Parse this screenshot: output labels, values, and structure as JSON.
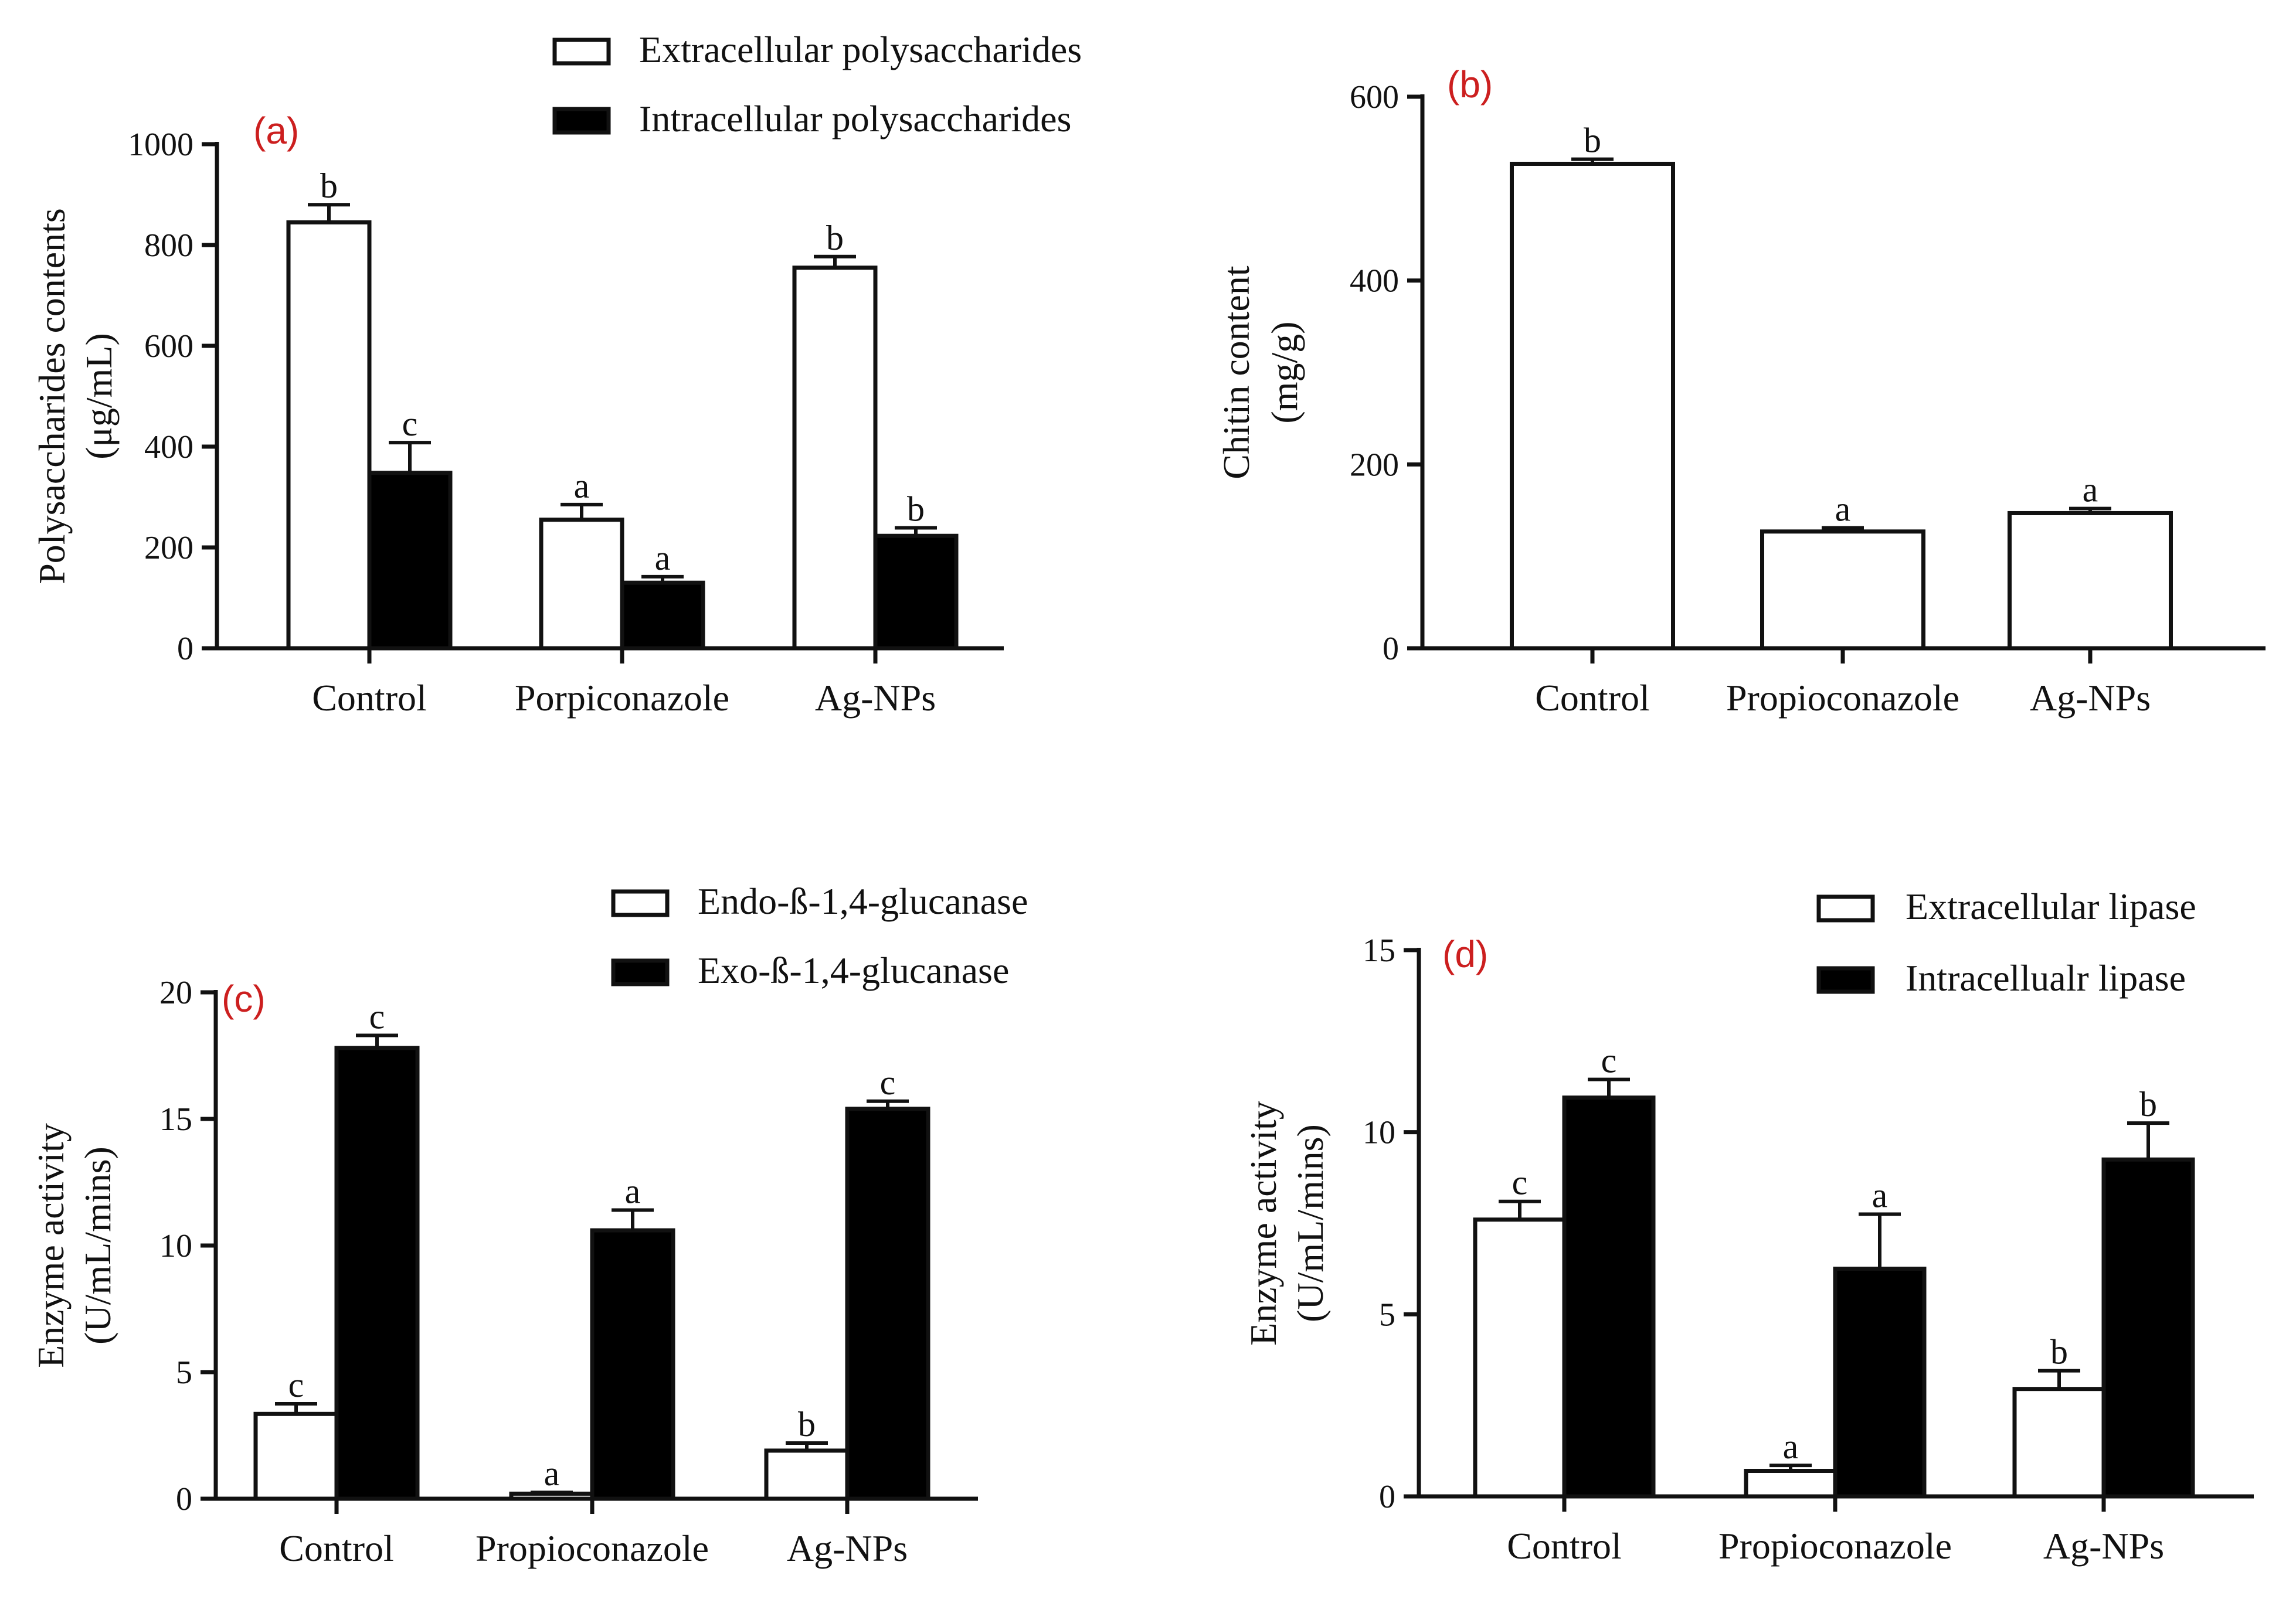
{
  "colors": {
    "open_fill": "#ffffff",
    "filled_fill": "#000000",
    "stroke": "#111111",
    "panel_tag": "#cc1f1f"
  },
  "chart_data": [
    {
      "id": "a",
      "panel_label": "(a)",
      "type": "bar",
      "categories": [
        "Control",
        "Porpiconazole",
        "Ag-NPs"
      ],
      "ylabel_lines": [
        "Polysaccharides contents",
        "(μg/mL)"
      ],
      "ylim": [
        0,
        1000
      ],
      "yticks": [
        0,
        200,
        400,
        600,
        800,
        1000
      ],
      "series": [
        {
          "name": "Extracellular polysaccharides",
          "fill": "open",
          "values": [
            845,
            255,
            755
          ],
          "errors": [
            35,
            30,
            22
          ],
          "letters": [
            "b",
            "a",
            "b"
          ]
        },
        {
          "name": "Intracellular polysaccharides",
          "fill": "filled",
          "values": [
            348,
            130,
            223
          ],
          "errors": [
            60,
            12,
            16
          ],
          "letters": [
            "c",
            "a",
            "b"
          ]
        }
      ]
    },
    {
      "id": "b",
      "panel_label": "(b)",
      "type": "bar",
      "categories": [
        "Control",
        "Propioconazole",
        "Ag-NPs"
      ],
      "ylabel_lines": [
        "Chitin content",
        "(mg/g)"
      ],
      "ylim": [
        0,
        600
      ],
      "yticks": [
        0,
        200,
        400,
        600
      ],
      "series": [
        {
          "name": "Chitin content",
          "fill": "open",
          "values": [
            527,
            127,
            147
          ],
          "errors": [
            5,
            4,
            5
          ],
          "letters": [
            "b",
            "a",
            "a"
          ]
        }
      ]
    },
    {
      "id": "c",
      "panel_label": "(c)",
      "type": "bar",
      "categories": [
        "Control",
        "Propioconazole",
        "Ag-NPs"
      ],
      "ylabel_lines": [
        "Enzyme  activity",
        "(U/mL/mins)"
      ],
      "ylim": [
        0,
        20
      ],
      "yticks": [
        0,
        5,
        10,
        15,
        20
      ],
      "series": [
        {
          "name": "Endo-ß-1,4-glucanase",
          "fill": "open",
          "values": [
            3.35,
            0.2,
            1.9
          ],
          "errors": [
            0.4,
            0.05,
            0.3
          ],
          "letters": [
            "c",
            "a",
            "b"
          ]
        },
        {
          "name": "Exo-ß-1,4-glucanase",
          "fill": "filled",
          "values": [
            17.8,
            10.6,
            15.4
          ],
          "errors": [
            0.5,
            0.8,
            0.3
          ],
          "letters": [
            "c",
            "a",
            "c"
          ]
        }
      ]
    },
    {
      "id": "d",
      "panel_label": "(d)",
      "type": "bar",
      "categories": [
        "Control",
        "Propioconazole",
        "Ag-NPs"
      ],
      "ylabel_lines": [
        "Enzyme  activity",
        "(U/mL/mins)"
      ],
      "ylim": [
        0,
        15
      ],
      "yticks": [
        0,
        5,
        10,
        15
      ],
      "series": [
        {
          "name": "Extracellular lipase",
          "fill": "open",
          "values": [
            7.6,
            0.7,
            2.95
          ],
          "errors": [
            0.5,
            0.15,
            0.5
          ],
          "letters": [
            "c",
            "a",
            "b"
          ]
        },
        {
          "name": "Intracellualr lipase",
          "fill": "filled",
          "values": [
            10.95,
            6.25,
            9.25
          ],
          "errors": [
            0.5,
            1.5,
            1.0
          ],
          "letters": [
            "c",
            "a",
            "b"
          ]
        }
      ]
    }
  ]
}
